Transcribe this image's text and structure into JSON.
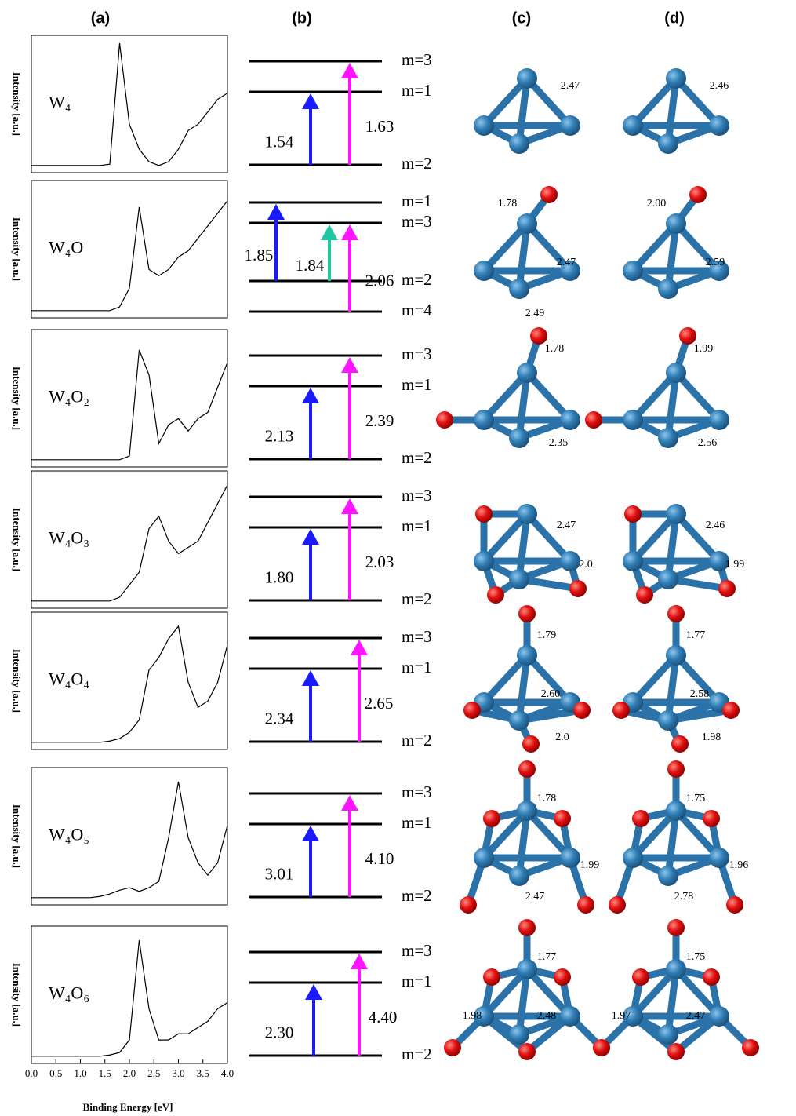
{
  "panel_labels": [
    "(a)",
    "(b)",
    "(c)",
    "(d)"
  ],
  "spectra_axis": {
    "y_label": "Intensity [a.u.]",
    "x_label": "Binding Energy [eV]",
    "xlim": [
      0,
      4
    ],
    "xticks": [
      {
        "value": 0,
        "label": "0.0"
      },
      {
        "value": 0.5,
        "label": "0.5"
      },
      {
        "value": 1,
        "label": "1.0"
      },
      {
        "value": 1.5,
        "label": "1.5"
      },
      {
        "value": 2,
        "label": "2.0"
      },
      {
        "value": 2.5,
        "label": "2.5"
      },
      {
        "value": 3,
        "label": "3.0"
      },
      {
        "value": 3.5,
        "label": "3.5"
      },
      {
        "value": 4,
        "label": "4.0"
      }
    ],
    "energies": [
      0,
      0.2,
      0.4,
      0.6,
      0.8,
      1.0,
      1.2,
      1.4,
      1.6,
      1.8,
      2.0,
      2.2,
      2.4,
      2.6,
      2.8,
      3.0,
      3.2,
      3.4,
      3.6,
      3.8,
      4.0
    ]
  },
  "rows": [
    {
      "species": "W₄",
      "spectrum": [
        0.02,
        0.02,
        0.02,
        0.02,
        0.02,
        0.02,
        0.02,
        0.02,
        0.03,
        1.0,
        0.35,
        0.15,
        0.05,
        0.02,
        0.05,
        0.15,
        0.3,
        0.35,
        0.45,
        0.55,
        0.6
      ],
      "levels": [
        "m=3",
        "m=1",
        "m=2"
      ],
      "transitions": [
        {
          "label": "1.54",
          "color": "#1a1aff"
        },
        {
          "label": "1.63",
          "color": "#ff14ff"
        }
      ],
      "bonds_c": [
        "2.47"
      ],
      "bonds_d": [
        "2.46"
      ]
    },
    {
      "species": "W₄O",
      "spectrum": [
        0.02,
        0.02,
        0.02,
        0.02,
        0.02,
        0.02,
        0.02,
        0.02,
        0.02,
        0.05,
        0.2,
        0.85,
        0.35,
        0.3,
        0.35,
        0.45,
        0.5,
        0.6,
        0.7,
        0.8,
        0.9
      ],
      "levels": [
        "m=1",
        "m=3",
        "m=2",
        "m=4"
      ],
      "transitions": [
        {
          "label": "1.85",
          "color": "#1a1aff"
        },
        {
          "label": "1.84",
          "color": "#1fc8a0"
        },
        {
          "label": "2.06",
          "color": "#ff14ff"
        }
      ],
      "bonds_c": [
        "1.78",
        "2.47",
        "2.49"
      ],
      "bonds_d": [
        "2.00",
        "2.59"
      ]
    },
    {
      "species": "W₄O₂",
      "spectrum": [
        0.02,
        0.02,
        0.02,
        0.02,
        0.02,
        0.02,
        0.02,
        0.02,
        0.02,
        0.02,
        0.05,
        0.9,
        0.7,
        0.15,
        0.3,
        0.35,
        0.25,
        0.35,
        0.4,
        0.6,
        0.8
      ],
      "levels": [
        "m=3",
        "m=1",
        "m=2"
      ],
      "transitions": [
        {
          "label": "2.13",
          "color": "#1a1aff"
        },
        {
          "label": "2.39",
          "color": "#ff14ff"
        }
      ],
      "bonds_c": [
        "1.78",
        "2.35"
      ],
      "bonds_d": [
        "1.99",
        "2.56"
      ]
    },
    {
      "species": "W₄O₃",
      "spectrum": [
        0.02,
        0.02,
        0.02,
        0.02,
        0.02,
        0.02,
        0.02,
        0.02,
        0.02,
        0.05,
        0.15,
        0.25,
        0.6,
        0.7,
        0.5,
        0.4,
        0.45,
        0.5,
        0.65,
        0.8,
        0.95
      ],
      "levels": [
        "m=3",
        "m=1",
        "m=2"
      ],
      "transitions": [
        {
          "label": "1.80",
          "color": "#1a1aff"
        },
        {
          "label": "2.03",
          "color": "#ff14ff"
        }
      ],
      "bonds_c": [
        "2.47",
        "2.0"
      ],
      "bonds_d": [
        "2.46",
        "1.99"
      ]
    },
    {
      "species": "W₄O₄",
      "spectrum": [
        0.02,
        0.02,
        0.02,
        0.02,
        0.02,
        0.02,
        0.02,
        0.02,
        0.03,
        0.05,
        0.1,
        0.2,
        0.6,
        0.7,
        0.85,
        0.95,
        0.5,
        0.3,
        0.35,
        0.5,
        0.8
      ],
      "levels": [
        "m=3",
        "m=1",
        "m=2"
      ],
      "transitions": [
        {
          "label": "2.34",
          "color": "#1a1aff"
        },
        {
          "label": "2.65",
          "color": "#ff14ff"
        }
      ],
      "bonds_c": [
        "1.79",
        "2.60",
        "2.0"
      ],
      "bonds_d": [
        "1.77",
        "2.58",
        "1.98"
      ]
    },
    {
      "species": "W₄O₅",
      "spectrum": [
        0.02,
        0.02,
        0.02,
        0.02,
        0.02,
        0.02,
        0.02,
        0.03,
        0.05,
        0.08,
        0.1,
        0.07,
        0.1,
        0.15,
        0.5,
        0.95,
        0.5,
        0.3,
        0.2,
        0.3,
        0.6
      ],
      "levels": [
        "m=3",
        "m=1",
        "m=2"
      ],
      "transitions": [
        {
          "label": "3.01",
          "color": "#1a1aff"
        },
        {
          "label": "4.10",
          "color": "#ff14ff"
        }
      ],
      "bonds_c": [
        "1.78",
        "1.99",
        "2.47"
      ],
      "bonds_d": [
        "1.75",
        "1.96",
        "2.78"
      ]
    },
    {
      "species": "W₄O₆",
      "spectrum": [
        0.02,
        0.02,
        0.02,
        0.02,
        0.02,
        0.02,
        0.02,
        0.02,
        0.03,
        0.05,
        0.15,
        0.95,
        0.4,
        0.15,
        0.15,
        0.2,
        0.2,
        0.25,
        0.3,
        0.4,
        0.45
      ],
      "levels": [
        "m=3",
        "m=1",
        "m=2"
      ],
      "transitions": [
        {
          "label": "2.30",
          "color": "#1a1aff"
        },
        {
          "label": "4.40",
          "color": "#ff14ff"
        }
      ],
      "bonds_c": [
        "1.77",
        "1.98",
        "2.48"
      ],
      "bonds_d": [
        "1.75",
        "1.97",
        "2.47"
      ]
    }
  ]
}
